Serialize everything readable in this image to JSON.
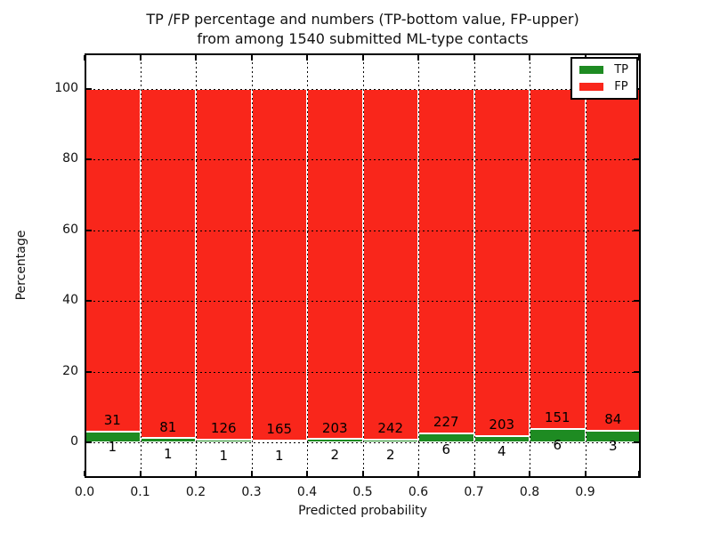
{
  "title": {
    "line1": "TP /FP percentage and numbers (TP-bottom value, FP-upper)",
    "line2": "from among 1540 submitted ML-type contacts"
  },
  "axes": {
    "xlabel": "Predicted probability",
    "ylabel": "Percentage",
    "xtick_labels": [
      "0.0",
      "0.1",
      "0.2",
      "0.3",
      "0.4",
      "0.5",
      "0.6",
      "0.7",
      "0.8",
      "0.9"
    ],
    "ytick_values": [
      0,
      20,
      40,
      60,
      80,
      100
    ]
  },
  "legend": {
    "items": [
      {
        "label": "TP",
        "color": "#1e8b22"
      },
      {
        "label": "FP",
        "color": "#f9261b"
      }
    ]
  },
  "chart_data": {
    "type": "bar",
    "stacked": true,
    "normalization": "each bin scaled so TP+FP = 100%",
    "annotation_scheme": "FP count printed above green segment, TP count printed below axis",
    "title": "TP /FP percentage and numbers (TP-bottom value, FP-upper) from among 1540 submitted ML-type contacts",
    "xlabel": "Predicted probability",
    "ylabel": "Percentage",
    "bin_start": [
      0.0,
      0.1,
      0.2,
      0.3,
      0.4,
      0.5,
      0.6,
      0.7,
      0.8,
      0.9
    ],
    "bin_width": 0.1,
    "series": [
      {
        "name": "TP",
        "color": "#1e8b22",
        "counts": [
          1,
          1,
          1,
          1,
          2,
          2,
          6,
          4,
          6,
          3
        ]
      },
      {
        "name": "FP",
        "color": "#f9261b",
        "counts": [
          31,
          81,
          126,
          165,
          203,
          242,
          227,
          203,
          151,
          84
        ]
      }
    ],
    "total_submitted": 1540,
    "xlim": [
      0.0,
      1.0
    ],
    "ylim": [
      -10,
      110
    ],
    "grid": "dotted, drawn above bars",
    "legend_position": "upper right",
    "bar_edge_color": "#ffffff"
  }
}
